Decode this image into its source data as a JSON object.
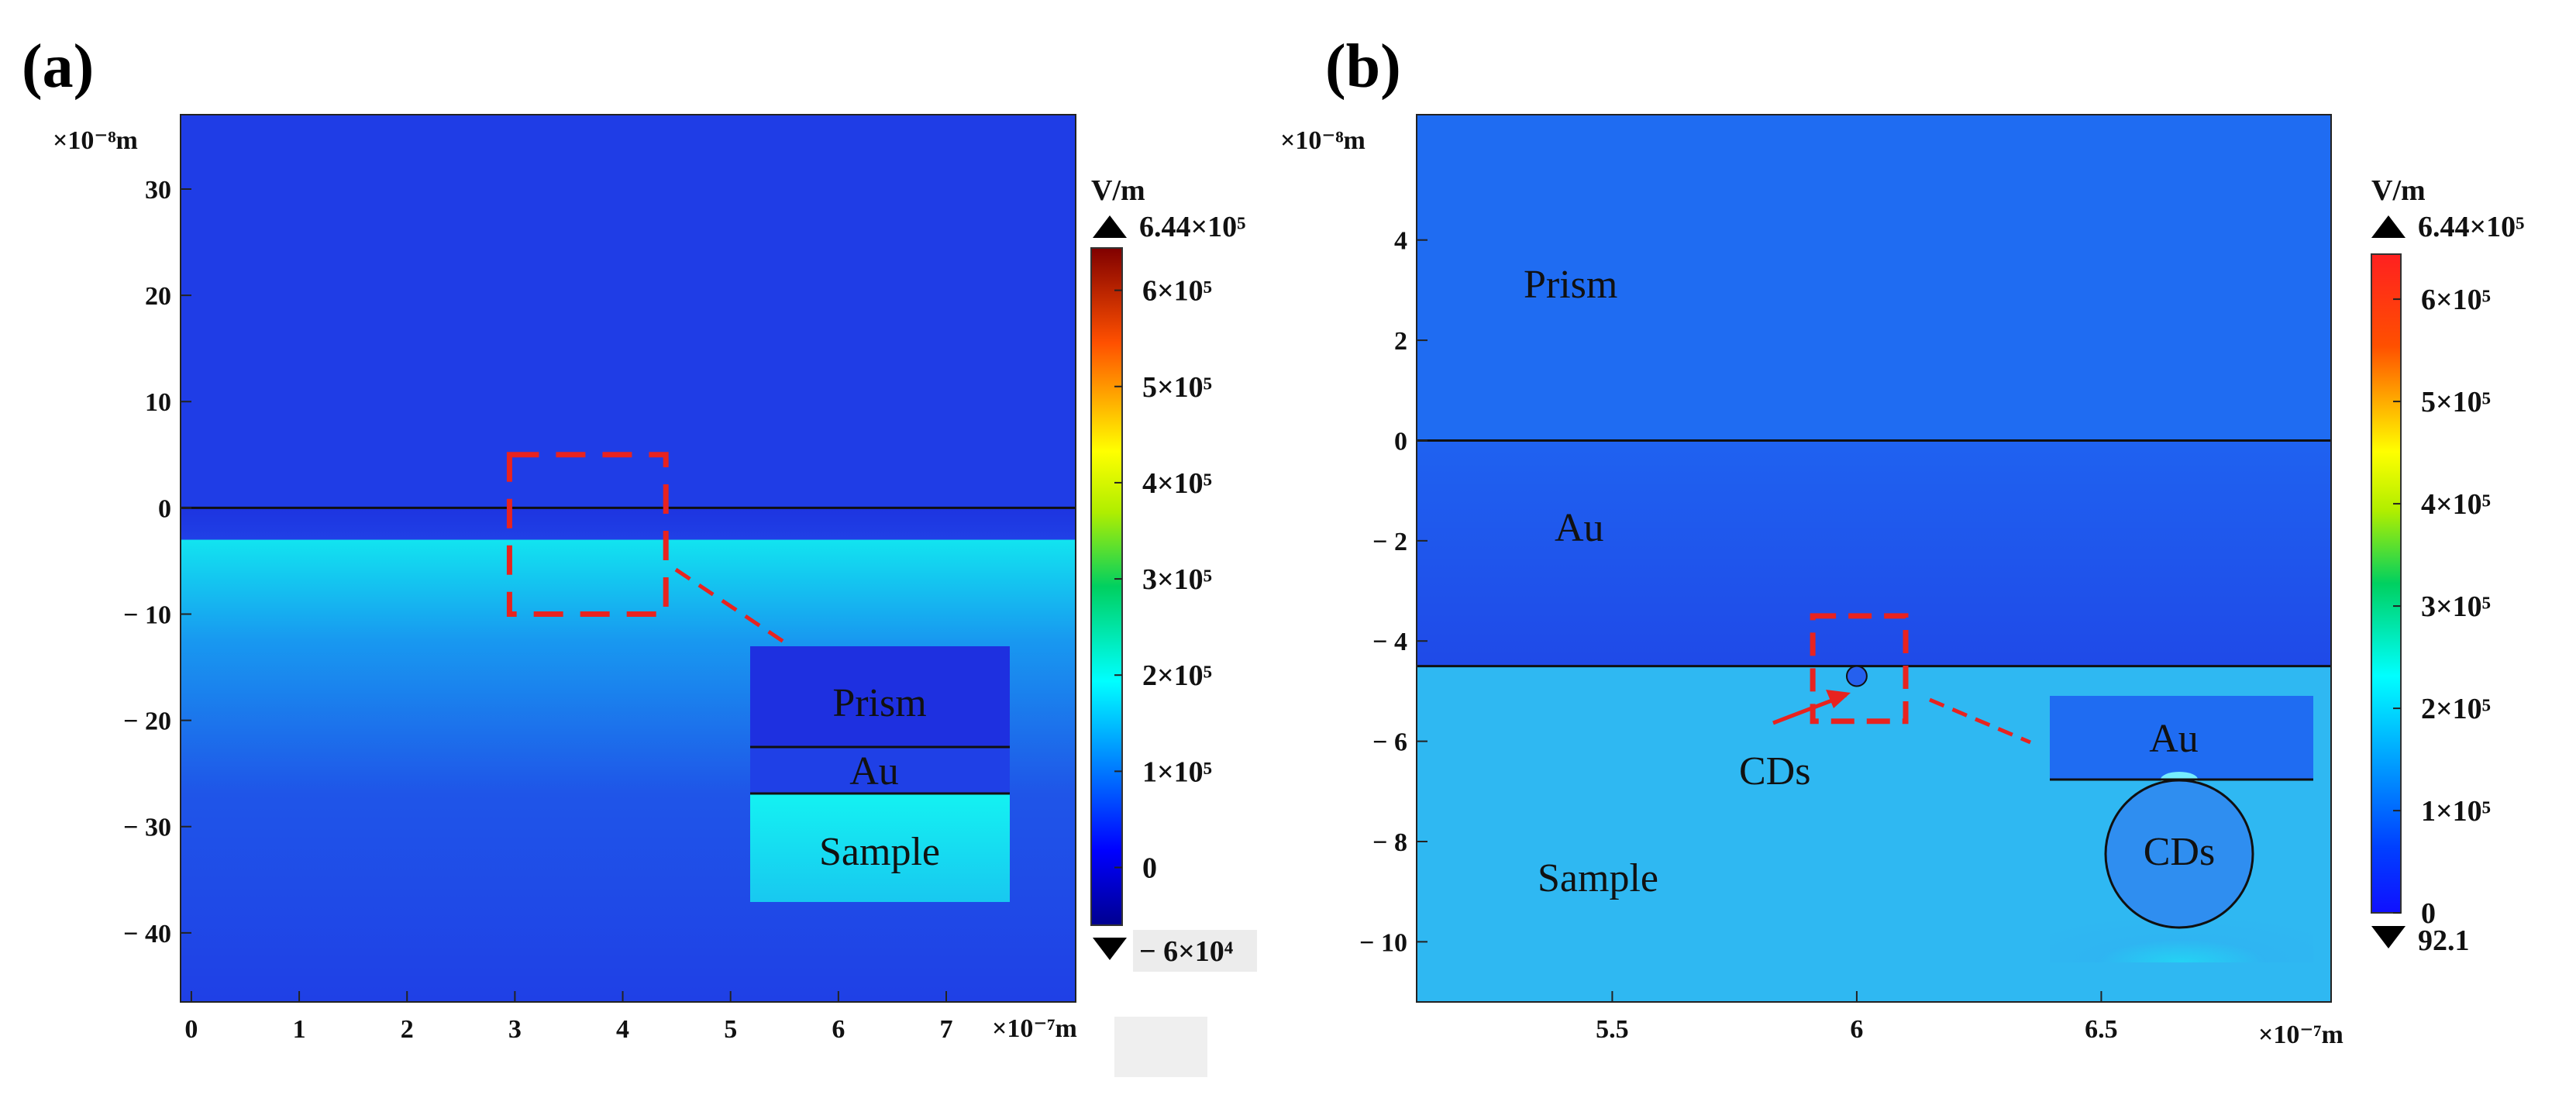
{
  "colors": {
    "field_low": "#1f3de6",
    "sample_a_top": "#12e4f0",
    "sample_b": "#2fb8f2",
    "prism_b": "#1f6cf2",
    "highlight": "#e8231f"
  },
  "chart_data": [
    {
      "panel": "(a)",
      "type": "heatmap",
      "title": "",
      "x": {
        "ticks": [
          0,
          1,
          2,
          3,
          4,
          5,
          6,
          7
        ],
        "unit": "×10⁻⁷m",
        "range": [
          -0.1,
          8.2
        ]
      },
      "y": {
        "ticks": [
          30,
          20,
          10,
          0,
          -10,
          -20,
          -30,
          -40
        ],
        "tick_labels": [
          "30",
          "20",
          "10",
          "0",
          "− 10",
          "− 20",
          "− 30",
          "− 40"
        ],
        "unit": "×10⁻⁸m",
        "range": [
          -46.5,
          37
        ]
      },
      "interfaces_y": [
        0,
        -3
      ],
      "regions": [
        "Prism",
        "Au",
        "Sample"
      ],
      "highlight_box": {
        "x": [
          2.95,
          4.4
        ],
        "y": [
          5,
          -10
        ]
      },
      "inset_labels": [
        "Prism",
        "Au",
        "Sample"
      ],
      "colorbar": {
        "unit": "V/m",
        "max_label": "6.44×10⁵",
        "min_label": "− 6×10⁴",
        "min": -60000,
        "max": 644000,
        "ticks": [
          600000,
          500000,
          400000,
          300000,
          200000,
          100000,
          0
        ],
        "tick_labels": [
          "6×10⁵",
          "5×10⁵",
          "4×10⁵",
          "3×10⁵",
          "2×10⁵",
          "1×10⁵",
          "0"
        ]
      }
    },
    {
      "panel": "(b)",
      "type": "heatmap",
      "title": "",
      "x": {
        "ticks": [
          5.5,
          6,
          6.5
        ],
        "tick_labels": [
          "5.5",
          "6",
          "6.5"
        ],
        "unit": "×10⁻⁷m",
        "range": [
          5.1,
          6.97
        ]
      },
      "y": {
        "ticks": [
          4,
          2,
          0,
          -2,
          -4,
          -6,
          -8,
          -10
        ],
        "tick_labels": [
          "4",
          "2",
          "0",
          "− 2",
          "− 4",
          "− 6",
          "− 8",
          "− 10"
        ],
        "unit": "×10⁻⁸m",
        "range": [
          -11.2,
          6.5
        ]
      },
      "interfaces_y": [
        0,
        -4.5
      ],
      "regions": [
        "Prism",
        "Au",
        "Sample"
      ],
      "particle": {
        "label": "CDs",
        "center": [
          6.0,
          -4.7
        ],
        "radius": 0.2
      },
      "highlight_box": {
        "x": [
          5.91,
          6.1
        ],
        "y": [
          -3.5,
          -5.6
        ]
      },
      "inset_labels": [
        "Au",
        "CDs"
      ],
      "colorbar": {
        "unit": "V/m",
        "max_label": "6.44×10⁵",
        "min_label": "92.1",
        "min": 92.1,
        "max": 644000,
        "ticks": [
          600000,
          500000,
          400000,
          300000,
          200000,
          100000,
          0
        ],
        "tick_labels": [
          "6×10⁵",
          "5×10⁵",
          "4×10⁵",
          "3×10⁵",
          "2×10⁵",
          "1×10⁵",
          "0"
        ]
      }
    }
  ]
}
